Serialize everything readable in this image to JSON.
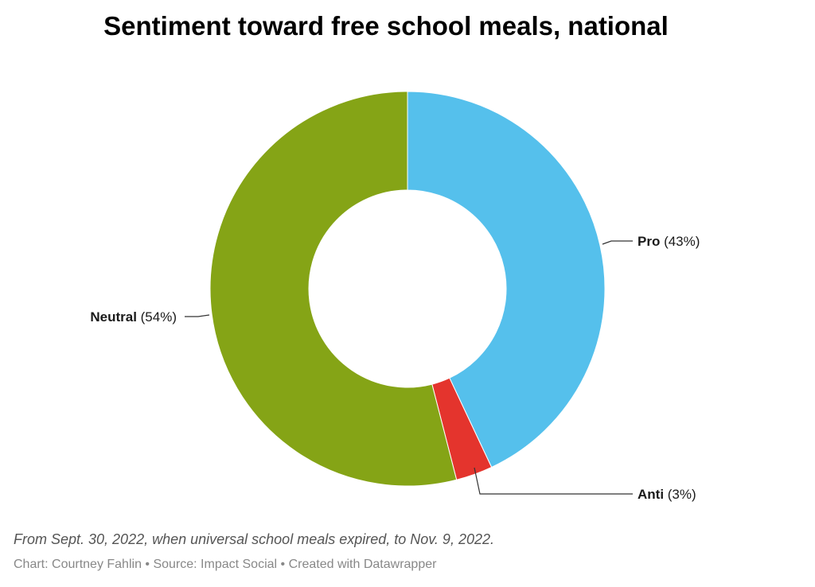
{
  "header": {
    "title": "Sentiment toward free school meals, national"
  },
  "chart_data": {
    "type": "pie",
    "donut": true,
    "slices": [
      {
        "label": "Pro",
        "value": 43,
        "pct_text": "(43%)",
        "color": "#55c0ec"
      },
      {
        "label": "Anti",
        "value": 3,
        "pct_text": "(3%)",
        "color": "#e4342d"
      },
      {
        "label": "Neutral",
        "value": 54,
        "pct_text": "(54%)",
        "color": "#85a416"
      }
    ]
  },
  "footer": {
    "notes": "From Sept. 30, 2022, when universal school meals expired, to Nov. 9, 2022.",
    "credits": "Chart: Courtney Fahlin • Source: Impact Social • Created with Datawrapper"
  }
}
